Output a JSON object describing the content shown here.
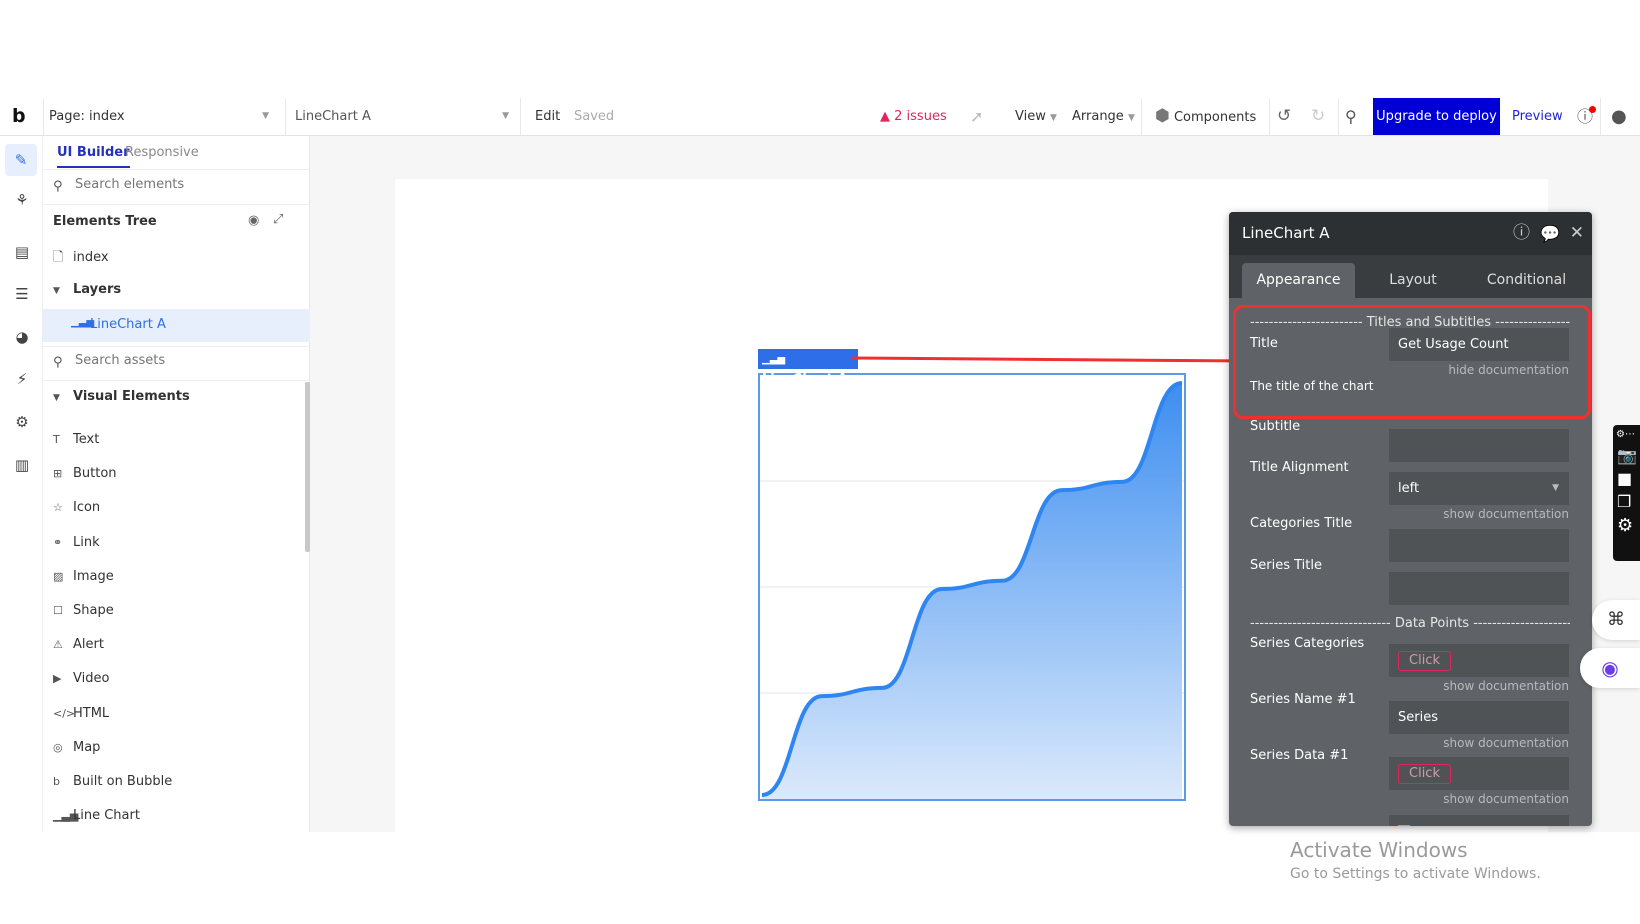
{
  "topbar": {
    "logo": "b",
    "page_label": "Page: index",
    "element_select": "LineChart A",
    "edit": "Edit",
    "saved": "Saved",
    "issues": "2 issues",
    "view": "View",
    "arrange": "Arrange",
    "components": "Components",
    "upgrade": "Upgrade to deploy",
    "preview": "Preview"
  },
  "left_panel": {
    "tabs": [
      "UI Builder",
      "Responsive"
    ],
    "search_elements_placeholder": "Search elements",
    "tree_title": "Elements Tree",
    "tree": [
      {
        "label": "index",
        "icon": "page-icon"
      },
      {
        "label": "Layers",
        "icon": "caret-down-icon"
      },
      {
        "label": "LineChart A",
        "icon": "line-chart-icon",
        "selected": true
      }
    ],
    "search_assets_placeholder": "Search assets",
    "section": "Visual Elements",
    "assets": [
      {
        "label": "Text",
        "icon": "T"
      },
      {
        "label": "Button",
        "icon": "⊞"
      },
      {
        "label": "Icon",
        "icon": "☆"
      },
      {
        "label": "Link",
        "icon": "⚭"
      },
      {
        "label": "Image",
        "icon": "▨"
      },
      {
        "label": "Shape",
        "icon": "☐"
      },
      {
        "label": "Alert",
        "icon": "⚠"
      },
      {
        "label": "Video",
        "icon": "▶"
      },
      {
        "label": "HTML",
        "icon": "</>"
      },
      {
        "label": "Map",
        "icon": "◎"
      },
      {
        "label": "Built on Bubble",
        "icon": "b"
      },
      {
        "label": "Line Chart",
        "icon": "▁▃▅"
      }
    ]
  },
  "canvas": {
    "element_tag": "LineChart A",
    "chart_preview": {
      "type": "area",
      "values": [
        0,
        24,
        26,
        50,
        52,
        74,
        76,
        100
      ],
      "color": "#3d8ef0"
    }
  },
  "property_panel": {
    "title": "LineChart A",
    "tabs": [
      "Appearance",
      "Layout",
      "Conditional"
    ],
    "active_tab": "Appearance",
    "section_titles": "------------------------ Titles and Subtitles ------------------------",
    "title_label": "Title",
    "title_value": "Get Usage Count",
    "hide_doc": "hide documentation",
    "title_doc": "The title of the chart",
    "subtitle_label": "Subtitle",
    "subtitle_value": "",
    "alignment_label": "Title Alignment",
    "alignment_value": "left",
    "show_doc": "show documentation",
    "categories_title_label": "Categories Title",
    "series_title_label": "Series Title",
    "section_data": "------------------------------ Data Points ------------------------------",
    "series_categories_label": "Series Categories",
    "click": "Click",
    "series_name_label": "Series Name #1",
    "series_name_value": "Series",
    "series_data_label": "Series Data #1"
  },
  "watermark": {
    "line1": "Activate Windows",
    "line2": "Go to Settings to activate Windows."
  },
  "colors": {
    "accent": "#0000d6",
    "selection": "#2e6ee8",
    "issues": "#e0245e",
    "highlight": "#f03030"
  }
}
